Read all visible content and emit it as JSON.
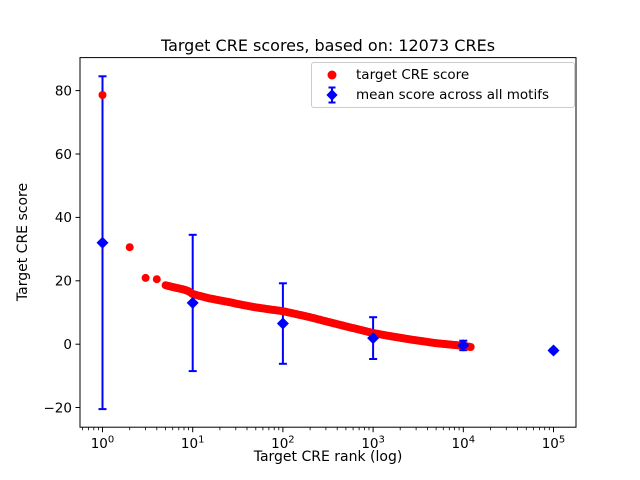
{
  "title": "Target CRE scores, based on: 12073 CREs",
  "xlabel": "Target CRE rank (log)",
  "ylabel": "Target CRE score",
  "legend": {
    "items": [
      {
        "label": "target CRE score",
        "marker": "circle-icon",
        "color": "#ff0000"
      },
      {
        "label": "mean score across all motifs",
        "marker": "diamond-errorbar-icon",
        "color": "#0000ff"
      }
    ]
  },
  "colors": {
    "target_series": "#ff0000",
    "mean_series": "#0000ff",
    "frame": "#000000",
    "legend_border": "#cccccc",
    "background": "#ffffff"
  },
  "axes": {
    "x_scale": "log",
    "x_tick_exponents": [
      0,
      1,
      2,
      3,
      4,
      5
    ],
    "y_ticks": [
      -20,
      0,
      20,
      40,
      60,
      80
    ],
    "xlim_log": [
      -0.25,
      5.25
    ],
    "ylim": [
      -26.2,
      90.4
    ],
    "grid": false
  },
  "chart_data": {
    "type": "scatter",
    "title": "Target CRE scores, based on: 12073 CREs",
    "xlabel": "Target CRE rank (log)",
    "ylabel": "Target CRE score",
    "x_scale": "log",
    "xlim_log": [
      -0.25,
      5.25
    ],
    "ylim": [
      -26.2,
      90.4
    ],
    "legend_position": "upper right",
    "n_cres": 12073,
    "series": [
      {
        "name": "target CRE score",
        "marker": "circle",
        "color": "#ff0000",
        "points": [
          [
            1,
            78.6
          ],
          [
            2,
            30.6
          ],
          [
            3,
            20.9
          ],
          [
            4,
            20.5
          ],
          [
            5,
            18.6
          ],
          [
            6,
            18.0
          ],
          [
            7,
            17.6
          ],
          [
            8,
            17.2
          ],
          [
            9,
            16.7
          ],
          [
            10,
            15.8
          ],
          [
            12,
            15.2
          ],
          [
            15,
            14.5
          ],
          [
            20,
            13.8
          ],
          [
            25,
            13.3
          ],
          [
            30,
            12.8
          ],
          [
            40,
            12.1
          ],
          [
            50,
            11.6
          ],
          [
            70,
            11.0
          ],
          [
            100,
            10.4
          ],
          [
            150,
            9.3
          ],
          [
            200,
            8.5
          ],
          [
            300,
            7.2
          ],
          [
            400,
            6.3
          ],
          [
            500,
            5.6
          ],
          [
            700,
            4.6
          ],
          [
            1000,
            3.5
          ],
          [
            1500,
            2.6
          ],
          [
            2000,
            2.0
          ],
          [
            3000,
            1.2
          ],
          [
            4000,
            0.7
          ],
          [
            5000,
            0.3
          ],
          [
            7000,
            -0.1
          ],
          [
            9000,
            -0.4
          ],
          [
            10000,
            -0.5
          ],
          [
            12073,
            -0.9
          ]
        ]
      },
      {
        "name": "mean score across all motifs",
        "marker": "diamond",
        "color": "#0000ff",
        "x": [
          1,
          10,
          100,
          1000,
          10000,
          100000
        ],
        "y": [
          32,
          13,
          6.5,
          1.9,
          -0.4,
          -2.0
        ],
        "yerr": [
          52.5,
          21.5,
          12.7,
          6.6,
          1.5,
          0.5
        ]
      }
    ]
  }
}
